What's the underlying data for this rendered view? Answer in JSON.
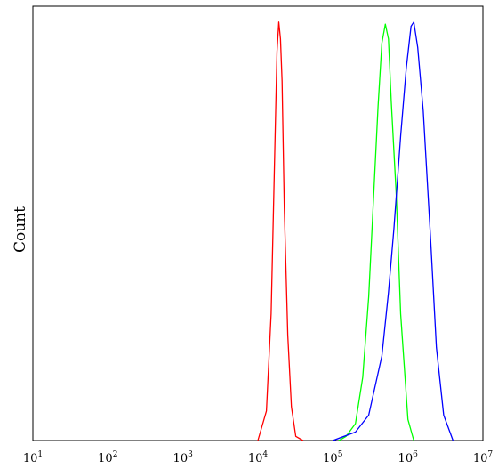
{
  "chart_data": {
    "type": "line",
    "title": "",
    "xlabel": "",
    "ylabel": "Count",
    "x_scale": "log",
    "xlim": [
      10,
      10000000
    ],
    "ylim": [
      0,
      1
    ],
    "grid": false,
    "legend": "none",
    "x_ticks": [
      {
        "base": "10",
        "exp": "1",
        "value": 10
      },
      {
        "base": "10",
        "exp": "2",
        "value": 100
      },
      {
        "base": "10",
        "exp": "3",
        "value": 1000
      },
      {
        "base": "10",
        "exp": "4",
        "value": 10000
      },
      {
        "base": "10",
        "exp": "5",
        "value": 100000
      },
      {
        "base": "10",
        "exp": "6",
        "value": 1000000
      },
      {
        "base": "10",
        "exp": "7",
        "value": 10000000
      }
    ],
    "series": [
      {
        "color": "#ff0000",
        "x": [
          10000,
          13000,
          15000,
          16500,
          18000,
          19000,
          20000,
          21000,
          22500,
          25000,
          28000,
          32000,
          40000
        ],
        "y": [
          0,
          0.07,
          0.3,
          0.62,
          0.92,
          0.99,
          0.95,
          0.85,
          0.55,
          0.25,
          0.08,
          0.01,
          0
        ]
      },
      {
        "color": "#00ff00",
        "x": [
          120000,
          150000,
          200000,
          250000,
          300000,
          350000,
          400000,
          450000,
          500000,
          550000,
          600000,
          700000,
          800000,
          1000000,
          1200000
        ],
        "y": [
          0,
          0.01,
          0.04,
          0.15,
          0.34,
          0.58,
          0.79,
          0.94,
          0.985,
          0.95,
          0.8,
          0.58,
          0.3,
          0.05,
          0
        ]
      },
      {
        "color": "#0000ff",
        "x": [
          100000,
          200000,
          300000,
          450000,
          550000,
          650000,
          800000,
          950000,
          1100000,
          1200000,
          1350000,
          1600000,
          2000000,
          2400000,
          3000000,
          4000000
        ],
        "y": [
          0,
          0.02,
          0.06,
          0.2,
          0.35,
          0.5,
          0.72,
          0.88,
          0.98,
          0.99,
          0.93,
          0.78,
          0.48,
          0.22,
          0.06,
          0
        ]
      }
    ]
  }
}
